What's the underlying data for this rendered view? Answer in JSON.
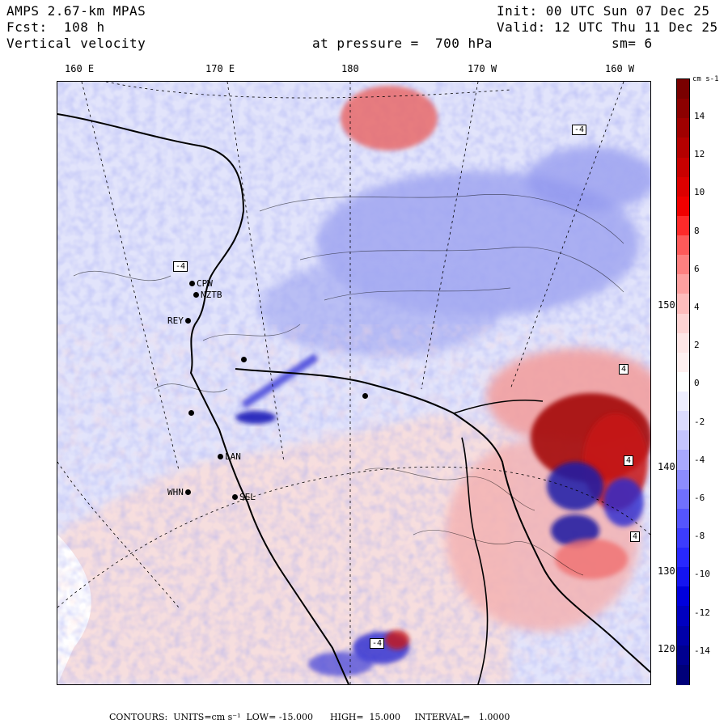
{
  "header": {
    "model": "AMPS 2.67-km MPAS",
    "fcst": "Fcst:  108 h",
    "field": "Vertical velocity",
    "init": "Init: 00 UTC Sun 07 Dec 25",
    "valid": "Valid: 12 UTC Thu 11 Dec 25",
    "pressure": "at pressure =  700 hPa",
    "smooth": "sm= 6"
  },
  "longitude_labels": [
    "160 E",
    "170 E",
    "180",
    "170 W",
    "160 W"
  ],
  "latitude_labels": [
    "150 W",
    "140 W",
    "130 W",
    "120 W"
  ],
  "stations": [
    {
      "code": "CPW",
      "label_side": "right"
    },
    {
      "code": "NZTB",
      "label_side": "right"
    },
    {
      "code": "REY",
      "label_side": "left"
    },
    {
      "code": "LAN",
      "label_side": "right"
    },
    {
      "code": "WHN",
      "label_side": "left"
    },
    {
      "code": "SEL",
      "label_side": "right"
    }
  ],
  "contour_labels": [
    "-4",
    "-4",
    "4",
    "4",
    "4",
    "-4"
  ],
  "colorbar": {
    "unit": "cm s-1",
    "ticks": [
      "14",
      "12",
      "10",
      "8",
      "6",
      "4",
      "2",
      "0",
      "-2",
      "-4",
      "-6",
      "-8",
      "-10",
      "-12",
      "-14"
    ],
    "colors": [
      "#7a0000",
      "#8c0000",
      "#a00000",
      "#b40000",
      "#c80000",
      "#dc0000",
      "#f00000",
      "#ff2a2a",
      "#ff5a5a",
      "#ff8080",
      "#ffa0a0",
      "#ffbcbc",
      "#ffd4d4",
      "#ffe6e6",
      "#fff0f0",
      "#ffffff",
      "#eeeeff",
      "#dcdcff",
      "#c4c4ff",
      "#a8a8ff",
      "#8c8cff",
      "#7070ff",
      "#5555ff",
      "#3c3cff",
      "#2828ff",
      "#1414f0",
      "#0000dc",
      "#0000c0",
      "#0000a8",
      "#000090",
      "#00007a"
    ]
  },
  "footer": {
    "text": "CONTOURS:  UNITS=cm s⁻¹  LOW= -15.000      HIGH=  15.000     INTERVAL=   1.0000"
  }
}
